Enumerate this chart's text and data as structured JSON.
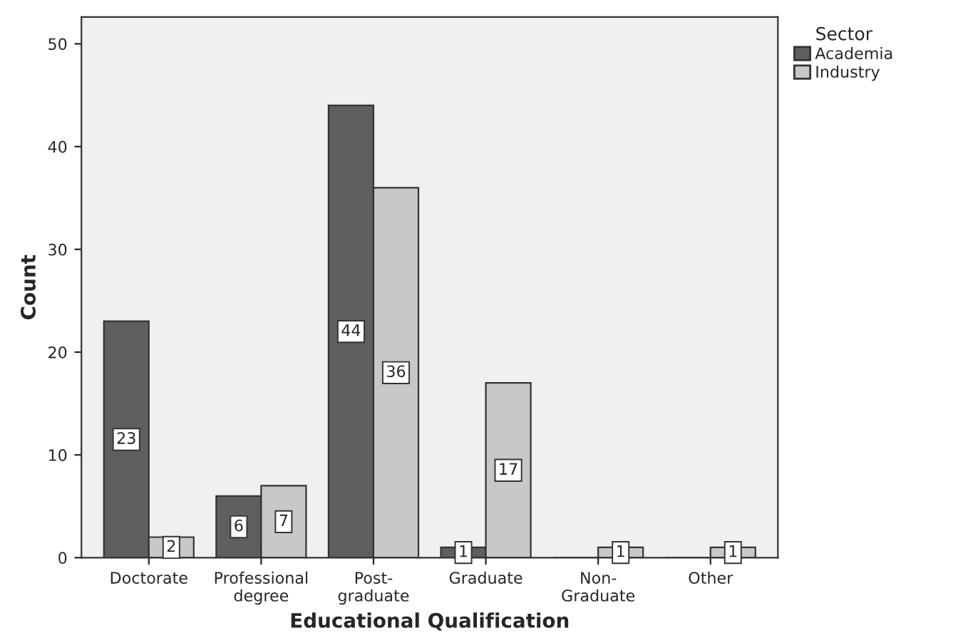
{
  "chart_data": {
    "type": "bar",
    "xlabel": "Educational Qualification",
    "ylabel": "Count",
    "legend_title": "Sector",
    "categories": [
      "Doctorate",
      "Professional\ndegree",
      "Post-\ngraduate",
      "Graduate",
      "Non-\nGraduate",
      "Other"
    ],
    "series": [
      {
        "name": "Academia",
        "color": "#5f5f5f",
        "values": [
          23,
          6,
          44,
          1,
          0,
          0
        ],
        "value_labels": [
          "23",
          "6",
          "44",
          "1",
          null,
          null
        ]
      },
      {
        "name": "Industry",
        "color": "#c8c8c8",
        "values": [
          2,
          7,
          36,
          17,
          1,
          1
        ],
        "value_labels": [
          "2",
          "7",
          "36",
          "17",
          "1",
          "1"
        ]
      }
    ],
    "ylim": [
      0,
      52.6
    ],
    "yticks": [
      0,
      10,
      20,
      30,
      40,
      50
    ],
    "grid": false,
    "legend": "top right"
  }
}
